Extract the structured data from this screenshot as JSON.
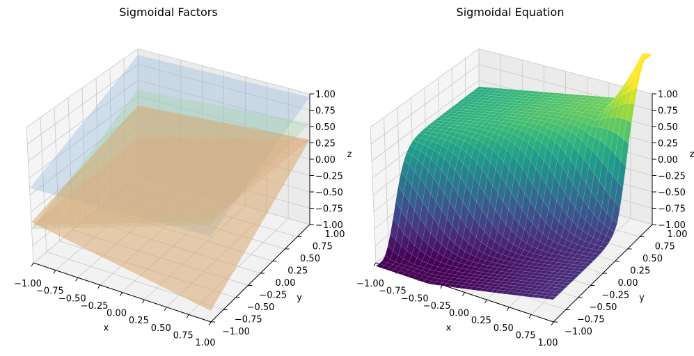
{
  "chart_data": [
    {
      "type": "surface3d",
      "title": "Sigmoidal Factors",
      "xlabel": "x",
      "ylabel": "y",
      "zlabel": "z",
      "xlim": [
        -1,
        1
      ],
      "ylim": [
        -1,
        1
      ],
      "zlim": [
        -1,
        1
      ],
      "xticks": [
        "−1.00",
        "−0.75",
        "−0.50",
        "−0.25",
        "0.00",
        "0.25",
        "0.50",
        "0.75",
        "1.00"
      ],
      "yticks": [
        "−1.00",
        "−0.75",
        "−0.50",
        "−0.25",
        "0.00",
        "0.25",
        "0.50",
        "0.75",
        "1.00"
      ],
      "zticks": [
        "−1.00",
        "−0.75",
        "−0.50",
        "−0.25",
        "0.00",
        "0.25",
        "0.50",
        "0.75",
        "1.00"
      ],
      "grid": true,
      "series": [
        {
          "color": "#8db4dc",
          "alpha": 0.35,
          "corner_z": {
            "x-1_y-1": 0.1,
            "x1_y-1": 0.15,
            "x-1_y1": 0.9,
            "x1_y1": 0.95
          }
        },
        {
          "color": "#9fd39f",
          "alpha": 0.35,
          "corner_z": {
            "x-1_y-1": -0.5,
            "x1_y-1": 0.3,
            "x-1_y1": 0.35,
            "x1_y1": 0.55
          }
        },
        {
          "color": "#e8a18f",
          "alpha": 0.3,
          "corner_z": {
            "x-1_y-1": -0.45,
            "x1_y-1": 0.35,
            "x-1_y1": -0.4,
            "x1_y1": 0.3
          }
        },
        {
          "color": "#d9a870",
          "alpha": 0.55,
          "corner_z": {
            "x-1_y-1": -0.4,
            "x1_y-1": -0.85,
            "x-1_y1": 0.1,
            "x1_y1": 0.3
          }
        }
      ]
    },
    {
      "type": "surface3d",
      "title": "Sigmoidal Equation",
      "xlabel": "x",
      "ylabel": "y",
      "zlabel": "z",
      "xlim": [
        -1,
        1
      ],
      "ylim": [
        -1,
        1
      ],
      "zlim": [
        -1,
        1
      ],
      "xticks": [
        "−1.00",
        "−0.75",
        "−0.50",
        "−0.25",
        "0.00",
        "0.25",
        "0.50",
        "0.75",
        "1.00"
      ],
      "yticks": [
        "−1.00",
        "−0.75",
        "−0.50",
        "−0.25",
        "0.00",
        "0.25",
        "0.50",
        "0.75",
        "1.00"
      ],
      "zticks": [
        "−1.00",
        "−0.75",
        "−0.50",
        "−0.25",
        "0.00",
        "0.25",
        "0.50",
        "0.75",
        "1.00"
      ],
      "grid": true,
      "colormap": "viridis"
    }
  ]
}
